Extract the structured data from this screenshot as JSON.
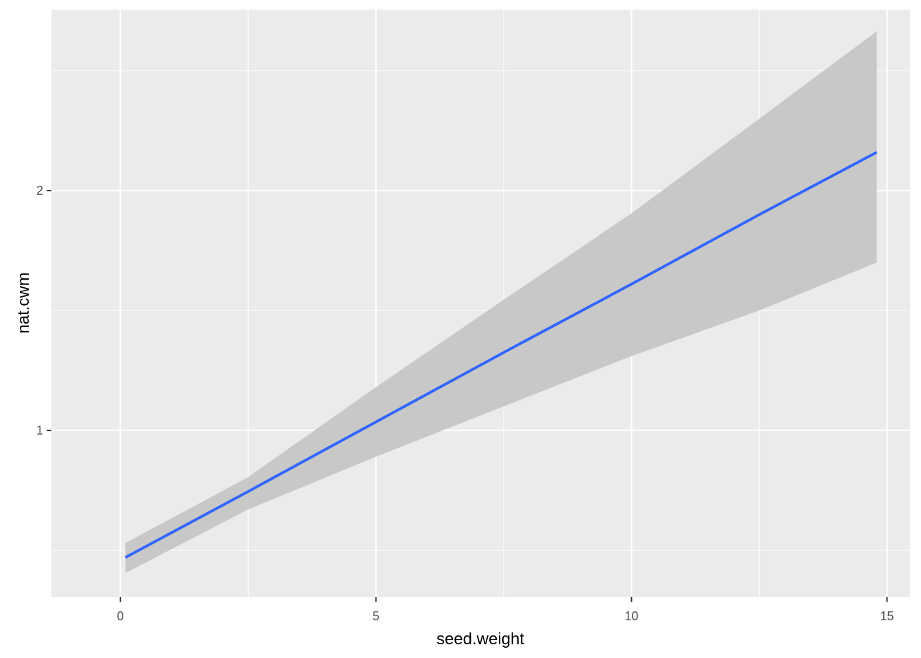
{
  "chart_data": {
    "type": "line",
    "xlabel": "seed.weight",
    "ylabel": "nat.cwm",
    "xlim": [
      -1.35,
      15.45
    ],
    "ylim": [
      0.305,
      2.755
    ],
    "x_ticks": [
      0,
      5,
      10,
      15
    ],
    "y_ticks": [
      1,
      2
    ],
    "x_minor": [
      2.5,
      7.5,
      12.5
    ],
    "y_minor": [
      0.5,
      1.5,
      2.5
    ],
    "grid": true,
    "legend": "none",
    "colors": {
      "panel": "#ebebeb",
      "grid": "#ffffff",
      "line": "#3366ff",
      "ribbon": "#c8c8c8",
      "tick_text": "#4d4d4d",
      "tick_mark": "#333333"
    },
    "series": [
      {
        "x": [
          0.1,
          2.5,
          5.0,
          7.5,
          10.0,
          12.5,
          14.8
        ],
        "y": [
          0.47,
          0.745,
          1.035,
          1.325,
          1.61,
          1.9,
          2.16
        ],
        "ymin": [
          0.405,
          0.67,
          0.89,
          1.1,
          1.31,
          1.5,
          1.7
        ],
        "ymax": [
          0.53,
          0.805,
          1.18,
          1.545,
          1.905,
          2.3,
          2.665
        ]
      }
    ]
  }
}
